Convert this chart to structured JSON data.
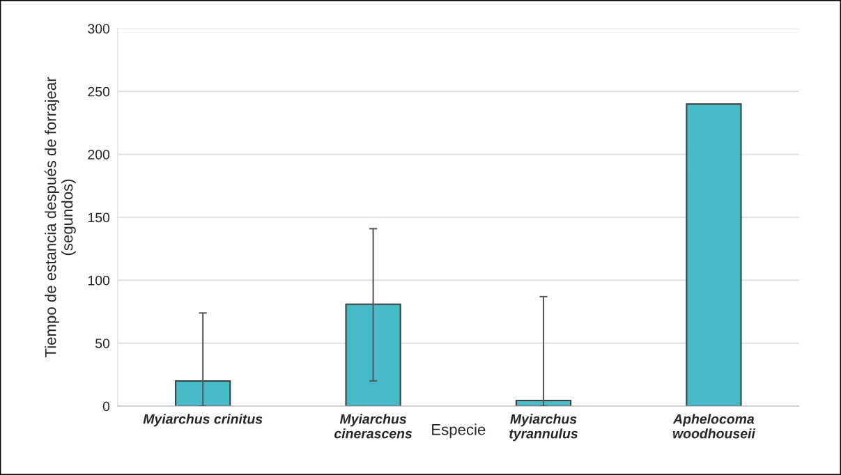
{
  "chart_data": {
    "type": "bar",
    "xlabel": "Especie",
    "ylabel": "Tiempo de estancia después de forrajear\n(segundos)",
    "categories": [
      "Myiarchus crinitus",
      "Myiarchus\ncinerascens",
      "Myiarchus\ntyrannulus",
      "Aphelocoma\nwoodhouseii"
    ],
    "values": [
      20,
      81,
      4.5,
      240
    ],
    "errors": [
      [
        0,
        74
      ],
      [
        20,
        141
      ],
      [
        0,
        87
      ],
      null
    ],
    "color": "#45bbc7",
    "ylim": [
      0,
      300
    ],
    "yticks": [
      0,
      50,
      100,
      150,
      200,
      250,
      300
    ],
    "grid": "y"
  }
}
